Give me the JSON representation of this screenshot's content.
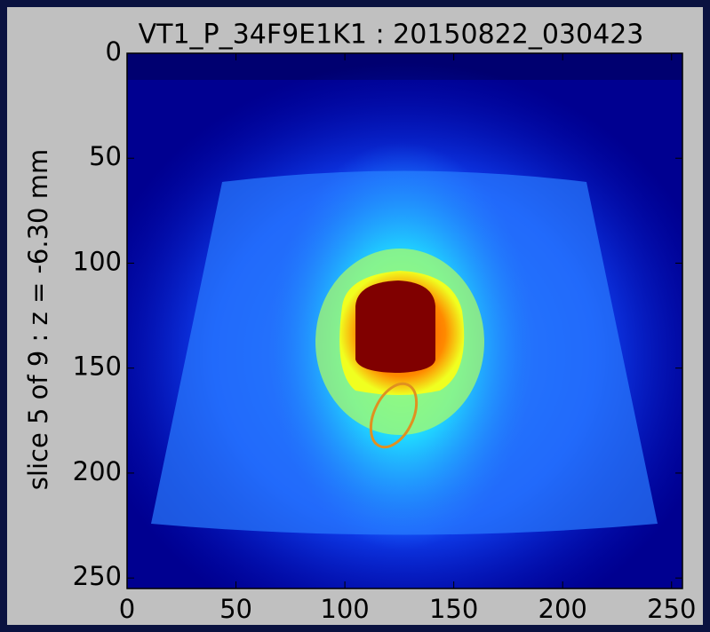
{
  "chart_data": {
    "type": "image",
    "title": "VT1_P_34F9E1K1 : 20150822_030423",
    "y_label": "slice 5 of 9 : z =   -6.30 mm",
    "xlim": [
      0,
      255
    ],
    "ylim": [
      255,
      0
    ],
    "xticks": [
      0,
      50,
      100,
      150,
      200,
      250
    ],
    "yticks": [
      0,
      50,
      100,
      150,
      200,
      250
    ]
  }
}
